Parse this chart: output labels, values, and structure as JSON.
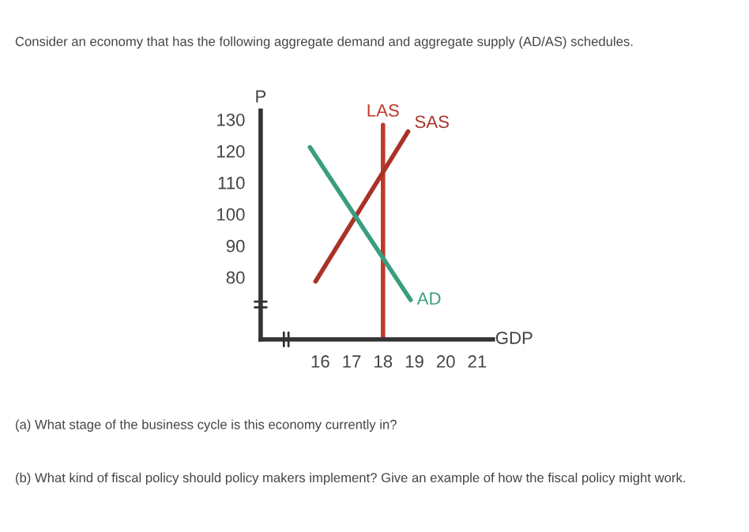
{
  "chart_data": {
    "type": "line",
    "title": "Consider an economy that has the following aggregate demand and aggregate supply (AD/AS) schedules.",
    "xlabel": "GDP",
    "ylabel": "P",
    "series": [
      {
        "name": "LAS",
        "color": "#c0392b",
        "x": [
          18,
          18
        ],
        "values": [
          60.3,
          128.3
        ]
      },
      {
        "name": "SAS",
        "color": "#a93226",
        "x": [
          15.85,
          18.8
        ],
        "values": [
          78.7,
          126.2
        ]
      },
      {
        "name": "AD",
        "color": "#3a9e7e",
        "x": [
          15.67,
          18.88
        ],
        "values": [
          121.2,
          72.8
        ]
      }
    ],
    "xlim": [
      14.1,
      21.5
    ],
    "ylim": [
      60.3,
      132.8
    ],
    "xticks": [
      16,
      17,
      18,
      19,
      20,
      21
    ],
    "yticks": [
      80,
      90,
      100,
      110,
      120,
      130
    ],
    "annotations": [
      "(a) What stage of the business cycle is this economy currently in?",
      "(b) What kind of fiscal policy should policy makers implement? Give an example of how the fiscal policy might work."
    ],
    "grid": false,
    "legend": false,
    "marker": "none",
    "line_style": "solid"
  }
}
